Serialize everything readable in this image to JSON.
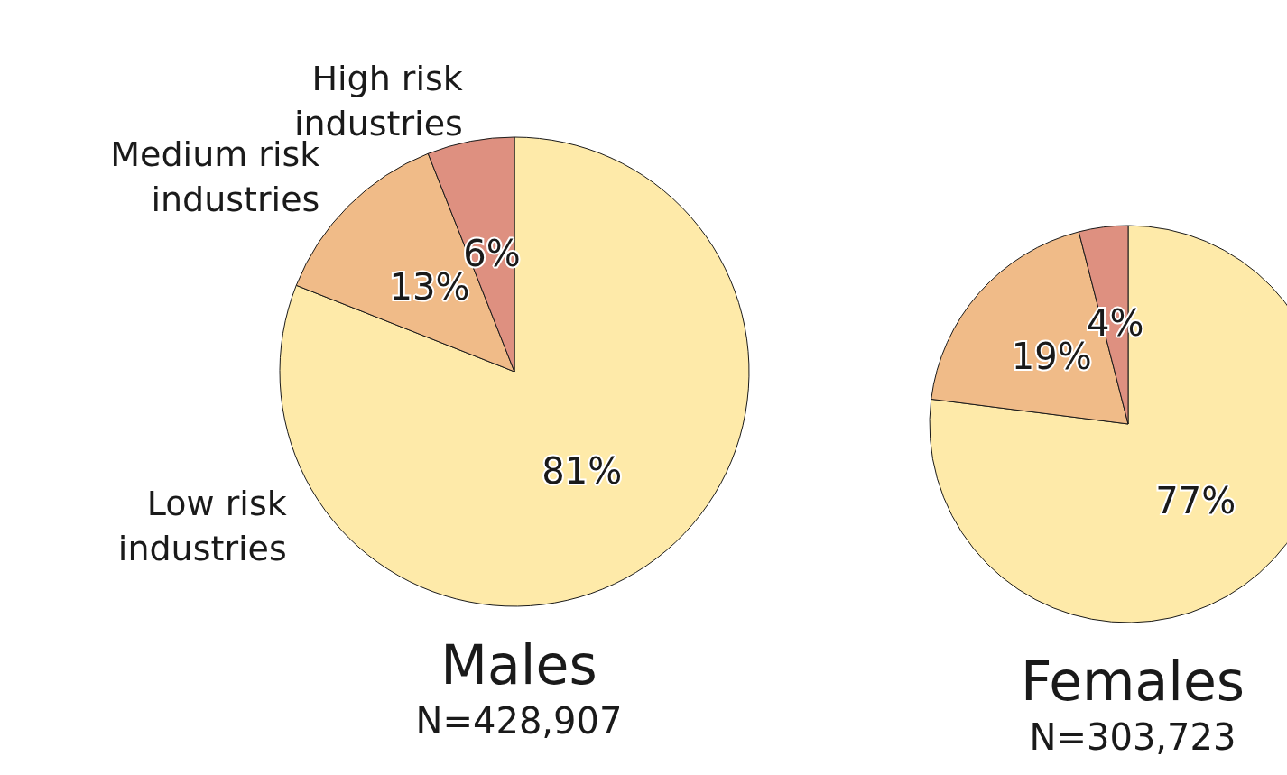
{
  "chart_data": [
    {
      "type": "pie",
      "title": "Males",
      "subtitle": "N=428,907",
      "categories": [
        "Low risk industries",
        "Medium risk industries",
        "High risk industries"
      ],
      "values": [
        81,
        13,
        6
      ],
      "colors": [
        "#feeaa9",
        "#f0bb88",
        "#de9080"
      ],
      "value_labels": [
        "81%",
        "13%",
        "6%"
      ]
    },
    {
      "type": "pie",
      "title": "Females",
      "subtitle": "N=303,723",
      "categories": [
        null,
        null,
        null
      ],
      "values": [
        77,
        19,
        4
      ],
      "colors": [
        "#feeaa9",
        "#f0bb88",
        "#de9080"
      ],
      "value_labels": [
        "77%",
        "19%",
        "4%"
      ]
    }
  ]
}
